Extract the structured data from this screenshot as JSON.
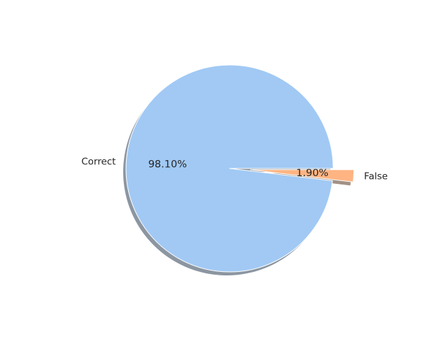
{
  "chart_data": {
    "type": "pie",
    "slices": [
      {
        "label": "Correct",
        "value": 98.1,
        "pct_label": "98.10%",
        "color": "#a1c9f4",
        "explode": 0
      },
      {
        "label": "False",
        "value": 1.9,
        "pct_label": "1.90%",
        "color": "#ffb482",
        "explode": 0.2
      }
    ],
    "shadow": true,
    "edge_color": "#ffffff",
    "legend": "none",
    "title": ""
  }
}
